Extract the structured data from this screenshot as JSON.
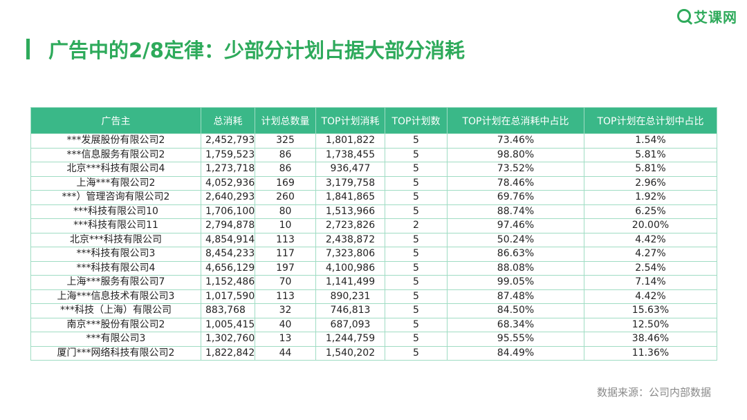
{
  "logo": {
    "text": "艾课网"
  },
  "title": "广告中的2/8定律：少部分计划占据大部分消耗",
  "table": {
    "headers": [
      "广告主",
      "总消耗",
      "计划总数量",
      "TOP计划消耗",
      "TOP计划数",
      "TOP计划在总消耗中占比",
      "TOP计划在总计划中占比"
    ],
    "rows": [
      [
        "***发展股份有限公司2",
        "2,452,793",
        "325",
        "1,801,822",
        "5",
        "73.46%",
        "1.54%"
      ],
      [
        "***信息服务有限公司2",
        "1,759,523",
        "86",
        "1,738,455",
        "5",
        "98.80%",
        "5.81%"
      ],
      [
        "北京***科技有限公司4",
        "1,273,718",
        "86",
        "936,477",
        "5",
        "73.52%",
        "5.81%"
      ],
      [
        "上海***有限公司2",
        "4,052,936",
        "169",
        "3,179,758",
        "5",
        "78.46%",
        "2.96%"
      ],
      [
        "***）管理咨询有限公司2",
        "2,640,293",
        "260",
        "1,841,865",
        "5",
        "69.76%",
        "1.92%"
      ],
      [
        "***科技有限公司10",
        "1,706,100",
        "80",
        "1,513,966",
        "5",
        "88.74%",
        "6.25%"
      ],
      [
        "***科技有限公司11",
        "2,794,878",
        "10",
        "2,723,826",
        "2",
        "97.46%",
        "20.00%"
      ],
      [
        "北京***科技有限公司",
        "4,854,914",
        "113",
        "2,438,872",
        "5",
        "50.24%",
        "4.42%"
      ],
      [
        "***科技有限公司3",
        "8,454,233",
        "117",
        "7,323,806",
        "5",
        "86.63%",
        "4.27%"
      ],
      [
        "***科技有限公司4",
        "4,656,129",
        "197",
        "4,100,986",
        "5",
        "88.08%",
        "2.54%"
      ],
      [
        "上海***服务有限公司7",
        "1,152,486",
        "70",
        "1,141,499",
        "5",
        "99.05%",
        "7.14%"
      ],
      [
        "上海***信息技术有限公司3",
        "1,017,590",
        "113",
        "890,231",
        "5",
        "87.48%",
        "4.42%"
      ],
      [
        "***科技（上海）有限公司",
        "883,768",
        "32",
        "746,813",
        "5",
        "84.50%",
        "15.63%"
      ],
      [
        "南京***股份有限公司2",
        "1,005,415",
        "40",
        "687,093",
        "5",
        "68.34%",
        "12.50%"
      ],
      [
        "***有限公司3",
        "1,302,760",
        "13",
        "1,244,759",
        "5",
        "95.55%",
        "38.46%"
      ],
      [
        "厦门***网络科技有限公司2",
        "1,822,842",
        "44",
        "1,540,202",
        "5",
        "84.49%",
        "11.36%"
      ]
    ]
  },
  "source": "数据来源：公司内部数据",
  "colors": {
    "accent": "#2eaa5b",
    "header_bg": "#3ab888",
    "border": "#9fdcc3"
  }
}
